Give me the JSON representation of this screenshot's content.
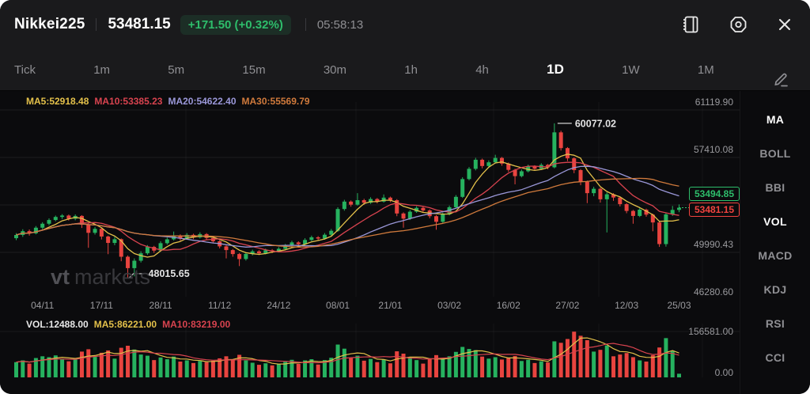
{
  "header": {
    "symbol": "Nikkei225",
    "price": "53481.15",
    "change": "+171.50 (+0.32%)",
    "time": "05:58:13",
    "icons": [
      "journal-icon",
      "settings-icon",
      "close-icon"
    ]
  },
  "timeframes": {
    "items": [
      {
        "label": "Tick",
        "active": false
      },
      {
        "label": "1m",
        "active": false
      },
      {
        "label": "5m",
        "active": false
      },
      {
        "label": "15m",
        "active": false
      },
      {
        "label": "30m",
        "active": false
      },
      {
        "label": "1h",
        "active": false
      },
      {
        "label": "4h",
        "active": false
      },
      {
        "label": "1D",
        "active": true
      },
      {
        "label": "1W",
        "active": false
      },
      {
        "label": "1M",
        "active": false
      }
    ]
  },
  "indicators_row": [
    {
      "label": "MA5:52918.48",
      "color": "#e3c04a"
    },
    {
      "label": "MA10:53385.23",
      "color": "#d8434f"
    },
    {
      "label": "MA20:54622.40",
      "color": "#9a97d8"
    },
    {
      "label": "MA30:55569.79",
      "color": "#d07a3c"
    }
  ],
  "volume_row": [
    {
      "label": "VOL:12488.00",
      "color": "#e8e8e8"
    },
    {
      "label": "MA5:86221.00",
      "color": "#e3c04a"
    },
    {
      "label": "MA10:83219.00",
      "color": "#d8434f"
    }
  ],
  "sidebar": {
    "items": [
      {
        "label": "MA",
        "active": true
      },
      {
        "label": "BOLL",
        "active": false
      },
      {
        "label": "BBI",
        "active": false
      },
      {
        "label": "VOL",
        "active": true
      },
      {
        "label": "MACD",
        "active": false
      },
      {
        "label": "KDJ",
        "active": false
      },
      {
        "label": "RSI",
        "active": false
      },
      {
        "label": "CCI",
        "active": false
      }
    ]
  },
  "watermark": {
    "bold": "vt",
    "rest": "markets"
  },
  "colors": {
    "up": "#26b25f",
    "down": "#e8443f",
    "tag_green": "#2ebd6b",
    "tag_red": "#f2433f",
    "grid": "rgba(255,255,255,0.07)"
  },
  "chart_data": {
    "type": "candlestick+volume",
    "symbol": "Nikkei225",
    "interval": "1D",
    "y_scale": {
      "top_price": 61119.9,
      "price_per_grid": 3709.82
    },
    "y_axis_labels": [
      {
        "text": "61119.90",
        "grid": 0
      },
      {
        "text": "57410.08",
        "grid": 1
      },
      {
        "text": "49990.43",
        "grid": 3
      },
      {
        "text": "46280.60",
        "grid": 4
      }
    ],
    "x_ticks": [
      {
        "label": "04/11",
        "index": 4
      },
      {
        "label": "17/11",
        "index": 13
      },
      {
        "label": "28/11",
        "index": 22
      },
      {
        "label": "11/12",
        "index": 31
      },
      {
        "label": "24/12",
        "index": 40
      },
      {
        "label": "08/01",
        "index": 49
      },
      {
        "label": "21/01",
        "index": 57
      },
      {
        "label": "03/02",
        "index": 66
      },
      {
        "label": "16/02",
        "index": 75
      },
      {
        "label": "27/02",
        "index": 84
      },
      {
        "label": "12/03",
        "index": 93
      },
      {
        "label": "25/03",
        "index": 101
      }
    ],
    "annotations": {
      "high": {
        "value": "60077.02",
        "index": 82,
        "price": 60077.02
      },
      "low": {
        "value": "48015.65",
        "index": 17,
        "price": 48015.65
      }
    },
    "price_tags": [
      {
        "value": "53494.85",
        "kind": "green"
      },
      {
        "value": "53481.15",
        "kind": "red"
      }
    ],
    "volume_axis": {
      "max_label": "156581.00",
      "min_label": "0.00",
      "max": 156581
    },
    "ma_lines": [
      {
        "period": 5,
        "color": "#e3c04a"
      },
      {
        "period": 10,
        "color": "#d8434f"
      },
      {
        "period": 20,
        "color": "#9a97d8"
      },
      {
        "period": 30,
        "color": "#d07a3c"
      }
    ],
    "vol_ma_lines": [
      {
        "period": 5,
        "color": "#e3c04a"
      },
      {
        "period": 10,
        "color": "#d8434f"
      }
    ],
    "candles": [
      [
        51100,
        51500,
        50950,
        51350,
        52000
      ],
      [
        51350,
        51800,
        51200,
        51650,
        58000
      ],
      [
        51650,
        51780,
        51300,
        51480,
        47000
      ],
      [
        51480,
        52050,
        51400,
        51920,
        66000
      ],
      [
        51920,
        52350,
        51800,
        52230,
        72000
      ],
      [
        52230,
        52650,
        52100,
        52520,
        69000
      ],
      [
        52520,
        52870,
        52420,
        52760,
        75000
      ],
      [
        52760,
        52980,
        52600,
        52870,
        61000
      ],
      [
        52870,
        52950,
        52480,
        52620,
        55000
      ],
      [
        52620,
        52960,
        52500,
        52840,
        63000
      ],
      [
        52840,
        52900,
        51900,
        52150,
        88000
      ],
      [
        52150,
        52250,
        50350,
        51520,
        96000
      ],
      [
        51520,
        51980,
        51380,
        51830,
        70000
      ],
      [
        51830,
        51900,
        51000,
        51230,
        84000
      ],
      [
        51230,
        51300,
        49850,
        50730,
        92000
      ],
      [
        50730,
        51200,
        50550,
        51020,
        64000
      ],
      [
        51020,
        51080,
        49300,
        49650,
        101000
      ],
      [
        49650,
        49750,
        48015.65,
        48760,
        108000
      ],
      [
        48760,
        49520,
        48120,
        49340,
        95000
      ],
      [
        49340,
        50080,
        49200,
        49920,
        78000
      ],
      [
        49920,
        50560,
        49800,
        50420,
        74000
      ],
      [
        50420,
        50500,
        49950,
        50130,
        59000
      ],
      [
        50130,
        50860,
        50050,
        50710,
        68000
      ],
      [
        50710,
        51150,
        50600,
        51010,
        62000
      ],
      [
        51010,
        51620,
        50920,
        51320,
        71000
      ],
      [
        51320,
        51400,
        50900,
        51060,
        54000
      ],
      [
        51060,
        51500,
        50980,
        51360,
        58000
      ],
      [
        51360,
        51450,
        51020,
        51160,
        49000
      ],
      [
        51160,
        51560,
        51080,
        51420,
        56000
      ],
      [
        51420,
        51500,
        50980,
        51120,
        52000
      ],
      [
        51120,
        51200,
        50700,
        50860,
        57000
      ],
      [
        50860,
        50940,
        50300,
        50460,
        65000
      ],
      [
        50460,
        50540,
        49520,
        50170,
        72000
      ],
      [
        50170,
        50250,
        49650,
        49860,
        61000
      ],
      [
        49860,
        49940,
        48920,
        49470,
        77000
      ],
      [
        49470,
        50000,
        49350,
        49870,
        58000
      ],
      [
        49870,
        50200,
        49750,
        50070,
        50000
      ],
      [
        50070,
        50160,
        49780,
        49920,
        43000
      ],
      [
        49920,
        50290,
        49840,
        50160,
        48000
      ],
      [
        50160,
        50250,
        49930,
        50070,
        41000
      ],
      [
        50070,
        50400,
        49980,
        50270,
        45000
      ],
      [
        50270,
        50650,
        50180,
        50520,
        53000
      ],
      [
        50520,
        50900,
        50430,
        50770,
        60000
      ],
      [
        50770,
        50860,
        50500,
        50630,
        46000
      ],
      [
        50630,
        51100,
        50550,
        50960,
        58000
      ],
      [
        50960,
        51300,
        50870,
        51170,
        62000
      ],
      [
        51170,
        51260,
        50930,
        51070,
        44000
      ],
      [
        51070,
        51500,
        50980,
        51370,
        59000
      ],
      [
        51370,
        51820,
        51280,
        51680,
        67000
      ],
      [
        51680,
        53520,
        51600,
        53380,
        112000
      ],
      [
        53380,
        54100,
        53250,
        53960,
        98000
      ],
      [
        53960,
        54050,
        53560,
        53720,
        66000
      ],
      [
        53720,
        54620,
        53640,
        54070,
        74000
      ],
      [
        54070,
        54180,
        53700,
        53870,
        57000
      ],
      [
        53870,
        54300,
        53780,
        54160,
        63000
      ],
      [
        54160,
        54240,
        53820,
        53960,
        52000
      ],
      [
        53960,
        54520,
        53880,
        54270,
        61000
      ],
      [
        54270,
        54350,
        53920,
        54070,
        48000
      ],
      [
        54070,
        54150,
        52820,
        53030,
        89000
      ],
      [
        53030,
        53120,
        51920,
        52630,
        81000
      ],
      [
        52630,
        53300,
        52520,
        53170,
        68000
      ],
      [
        53170,
        53600,
        53080,
        53470,
        59000
      ],
      [
        53470,
        53560,
        53120,
        53270,
        47000
      ],
      [
        53270,
        53350,
        52650,
        52820,
        64000
      ],
      [
        52820,
        52900,
        51760,
        52380,
        76000
      ],
      [
        52380,
        53100,
        52290,
        52970,
        66000
      ],
      [
        52970,
        53650,
        52880,
        53520,
        72000
      ],
      [
        53520,
        54470,
        53440,
        54330,
        87000
      ],
      [
        54330,
        55860,
        54250,
        55720,
        104000
      ],
      [
        55720,
        56660,
        55620,
        56520,
        97000
      ],
      [
        56520,
        57380,
        56400,
        57230,
        93000
      ],
      [
        57230,
        57320,
        56560,
        56740,
        71000
      ],
      [
        56740,
        57180,
        56620,
        57030,
        64000
      ],
      [
        57030,
        57620,
        56940,
        57370,
        69000
      ],
      [
        57370,
        57450,
        56760,
        56930,
        61000
      ],
      [
        56930,
        57010,
        56280,
        56440,
        67000
      ],
      [
        56440,
        56520,
        55310,
        55950,
        73000
      ],
      [
        55950,
        56470,
        55850,
        56330,
        56000
      ],
      [
        56330,
        56850,
        56240,
        56720,
        60000
      ],
      [
        56720,
        56800,
        56380,
        56530,
        49000
      ],
      [
        56530,
        56960,
        56440,
        56830,
        55000
      ],
      [
        56830,
        56900,
        56480,
        56640,
        51000
      ],
      [
        56640,
        60077.02,
        56560,
        59370,
        123000
      ],
      [
        59370,
        59500,
        57950,
        58140,
        118000
      ],
      [
        58140,
        58220,
        57120,
        57340,
        131000
      ],
      [
        57340,
        57420,
        56180,
        56420,
        156000
      ],
      [
        56420,
        56500,
        55240,
        55510,
        142000
      ],
      [
        55510,
        55600,
        53840,
        54620,
        127000
      ],
      [
        54620,
        55120,
        54380,
        54960,
        88000
      ],
      [
        54960,
        55040,
        53880,
        54140,
        94000
      ],
      [
        54140,
        54680,
        51550,
        54530,
        109000
      ],
      [
        54530,
        54620,
        54020,
        54280,
        72000
      ],
      [
        54280,
        54350,
        53580,
        53760,
        78000
      ],
      [
        53760,
        53840,
        53050,
        53230,
        83000
      ],
      [
        53230,
        53310,
        52230,
        52840,
        69000
      ],
      [
        52840,
        53460,
        52750,
        53330,
        58000
      ],
      [
        53330,
        53410,
        52780,
        52940,
        54000
      ],
      [
        52940,
        53010,
        51640,
        52330,
        76000
      ],
      [
        52330,
        52400,
        50420,
        50640,
        102000
      ],
      [
        50640,
        53080,
        50440,
        52960,
        134000
      ],
      [
        52960,
        53620,
        52840,
        53310,
        91000
      ],
      [
        53310,
        53740,
        53130,
        53481.15,
        12488
      ]
    ]
  }
}
